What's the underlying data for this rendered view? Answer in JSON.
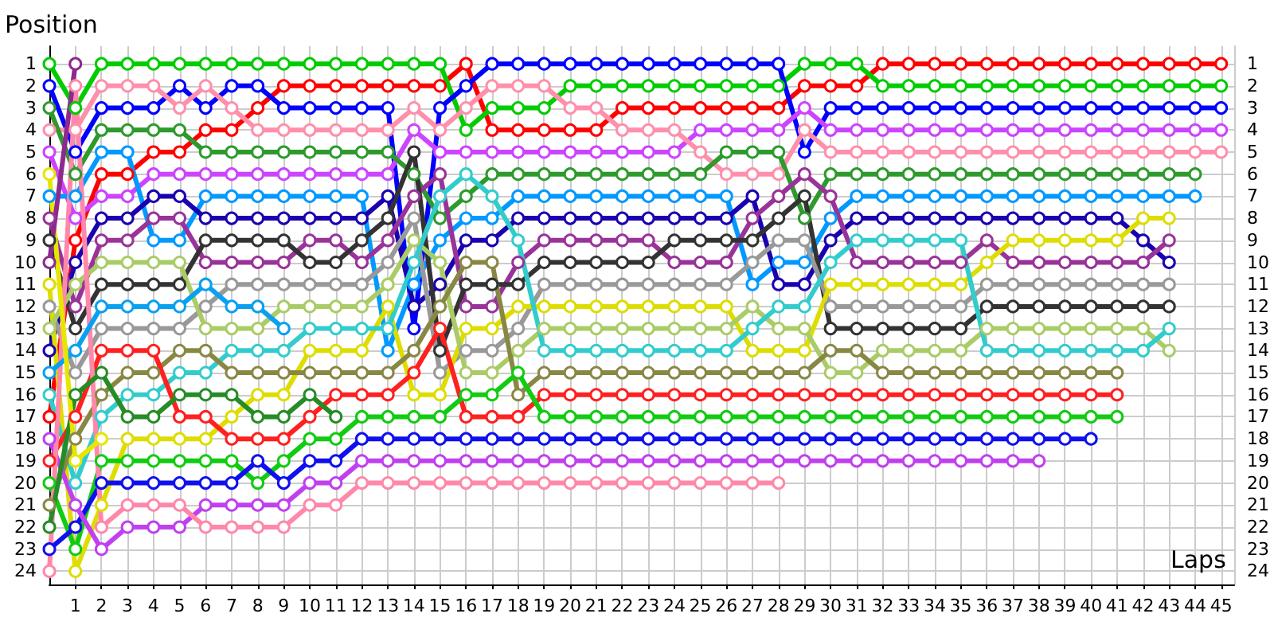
{
  "chart_data": {
    "type": "line",
    "xlabel": "Laps",
    "ylabel": "Position",
    "grid": true,
    "marker": "circle",
    "line_style": "solid",
    "x": [
      0,
      1,
      2,
      3,
      4,
      5,
      6,
      7,
      8,
      9,
      10,
      11,
      12,
      13,
      14,
      15,
      16,
      17,
      18,
      19,
      20,
      21,
      22,
      23,
      24,
      25,
      26,
      27,
      28,
      29,
      30,
      31,
      32,
      33,
      34,
      35,
      36,
      37,
      38,
      39,
      40,
      41,
      42,
      43,
      44,
      45
    ],
    "xlim": [
      0,
      45.5
    ],
    "xticks": [
      1,
      2,
      3,
      4,
      5,
      6,
      7,
      8,
      9,
      10,
      11,
      12,
      13,
      14,
      15,
      16,
      17,
      18,
      19,
      20,
      21,
      22,
      23,
      24,
      25,
      26,
      27,
      28,
      29,
      30,
      31,
      32,
      33,
      34,
      35,
      36,
      37,
      38,
      39,
      40,
      41,
      42,
      43,
      44,
      45
    ],
    "ylim": [
      24.6,
      0.2
    ],
    "yticks": [
      1,
      2,
      3,
      4,
      5,
      6,
      7,
      8,
      9,
      10,
      11,
      12,
      13,
      14,
      15,
      16,
      17,
      18,
      19,
      20,
      21,
      22,
      23,
      24
    ],
    "y2lim": [
      24.6,
      0.2
    ],
    "y2ticks": [
      1,
      2,
      3,
      4,
      5,
      6,
      7,
      8,
      9,
      10,
      11,
      12,
      13,
      14,
      15,
      16,
      17,
      18,
      19,
      20,
      21,
      22,
      23,
      24
    ],
    "series": [
      {
        "color": "#ff0000",
        "values": [
          17,
          9,
          6,
          6,
          5,
          5,
          4,
          4,
          3,
          2,
          2,
          2,
          2,
          2,
          2,
          2,
          1,
          4,
          4,
          4,
          4,
          4,
          3,
          3,
          3,
          3,
          3,
          3,
          3,
          2,
          2,
          2,
          1,
          1,
          1,
          1,
          1,
          1,
          1,
          1,
          1,
          1,
          1,
          1,
          1,
          1
        ]
      },
      {
        "color": "#00cc00",
        "values": [
          1,
          3,
          1,
          1,
          1,
          1,
          1,
          1,
          1,
          1,
          1,
          1,
          1,
          1,
          1,
          1,
          4,
          3,
          3,
          3,
          2,
          2,
          2,
          2,
          2,
          2,
          2,
          2,
          2,
          1,
          1,
          1,
          2,
          2,
          2,
          2,
          2,
          2,
          2,
          2,
          2,
          2,
          2,
          2,
          2,
          2
        ]
      },
      {
        "color": "#0000ff",
        "values": [
          2,
          5,
          3,
          3,
          3,
          2,
          3,
          2,
          2,
          3,
          3,
          3,
          3,
          3,
          13,
          3,
          2,
          1,
          1,
          1,
          1,
          1,
          1,
          1,
          1,
          1,
          1,
          1,
          1,
          5,
          3,
          3,
          3,
          3,
          3,
          3,
          3,
          3,
          3,
          3,
          3,
          3,
          3,
          3,
          3,
          3
        ]
      },
      {
        "color": "#cc44ff",
        "values": [
          5,
          8,
          7,
          7,
          6,
          6,
          6,
          6,
          6,
          6,
          6,
          6,
          6,
          6,
          4,
          5,
          5,
          5,
          5,
          5,
          5,
          5,
          5,
          5,
          5,
          4,
          4,
          4,
          4,
          3,
          4,
          4,
          4,
          4,
          4,
          4,
          4,
          4,
          4,
          4,
          4,
          4,
          4,
          4,
          4,
          4
        ]
      },
      {
        "color": "#ff8fab",
        "values": [
          4,
          4,
          2,
          2,
          2,
          3,
          2,
          3,
          4,
          4,
          4,
          4,
          4,
          4,
          3,
          4,
          3,
          2,
          2,
          2,
          3,
          3,
          4,
          4,
          4,
          5,
          6,
          6,
          6,
          4,
          5,
          5,
          5,
          5,
          5,
          5,
          5,
          5,
          5,
          5,
          5,
          5,
          5,
          5,
          5,
          5
        ]
      },
      {
        "color": "#2e9a2e",
        "values": [
          3,
          6,
          4,
          4,
          4,
          4,
          5,
          5,
          5,
          5,
          5,
          5,
          5,
          5,
          6,
          8,
          7,
          6,
          6,
          6,
          6,
          6,
          6,
          6,
          6,
          6,
          5,
          5,
          5,
          8,
          6,
          6,
          6,
          6,
          6,
          6,
          6,
          6,
          6,
          6,
          6,
          6,
          6,
          6,
          6,
          null
        ]
      },
      {
        "color": "#0099ff",
        "values": [
          7,
          7,
          5,
          5,
          9,
          9,
          7,
          7,
          7,
          7,
          7,
          7,
          7,
          14,
          11,
          9,
          8,
          8,
          7,
          7,
          7,
          7,
          7,
          7,
          7,
          7,
          7,
          11,
          10,
          10,
          8,
          7,
          7,
          7,
          7,
          7,
          7,
          7,
          7,
          7,
          7,
          7,
          7,
          7,
          7,
          null
        ]
      },
      {
        "color": "#1a00b0",
        "values": [
          14,
          10,
          8,
          8,
          7,
          7,
          8,
          8,
          8,
          8,
          8,
          8,
          8,
          7,
          12,
          11,
          9,
          9,
          8,
          8,
          8,
          8,
          8,
          8,
          8,
          8,
          8,
          7,
          11,
          11,
          9,
          8,
          8,
          8,
          8,
          8,
          8,
          8,
          8,
          8,
          8,
          8,
          9,
          10,
          null,
          null
        ]
      },
      {
        "color": "#993399",
        "values": [
          8,
          12,
          9,
          9,
          8,
          8,
          10,
          10,
          10,
          10,
          9,
          9,
          10,
          9,
          7,
          6,
          12,
          12,
          10,
          9,
          9,
          9,
          9,
          9,
          10,
          10,
          10,
          8,
          7,
          6,
          7,
          10,
          10,
          10,
          10,
          10,
          9,
          10,
          10,
          10,
          10,
          10,
          10,
          9,
          null,
          null
        ]
      },
      {
        "color": "#333333",
        "values": [
          9,
          13,
          11,
          11,
          11,
          11,
          9,
          9,
          9,
          9,
          10,
          10,
          9,
          8,
          5,
          14,
          11,
          11,
          11,
          10,
          10,
          10,
          10,
          10,
          9,
          9,
          9,
          9,
          8,
          7,
          13,
          13,
          13,
          13,
          13,
          13,
          12,
          12,
          12,
          12,
          12,
          12,
          12,
          12,
          null,
          null
        ]
      },
      {
        "color": "#999999",
        "values": [
          12,
          15,
          13,
          13,
          13,
          13,
          12,
          11,
          11,
          11,
          11,
          11,
          11,
          10,
          8,
          15,
          14,
          14,
          13,
          11,
          11,
          11,
          11,
          11,
          11,
          11,
          11,
          10,
          9,
          9,
          12,
          12,
          12,
          12,
          12,
          12,
          11,
          11,
          11,
          11,
          11,
          11,
          11,
          11,
          null,
          null
        ]
      },
      {
        "color": "#dddd00",
        "values": [
          11,
          24,
          21,
          18,
          18,
          18,
          18,
          17,
          16,
          16,
          14,
          14,
          14,
          12,
          16,
          16,
          13,
          13,
          12,
          12,
          12,
          12,
          12,
          12,
          12,
          12,
          12,
          14,
          14,
          14,
          11,
          11,
          11,
          11,
          11,
          11,
          10,
          9,
          9,
          9,
          9,
          9,
          8,
          8,
          null,
          null
        ]
      },
      {
        "color": "#aacc66",
        "values": [
          13,
          11,
          10,
          10,
          10,
          10,
          13,
          13,
          13,
          12,
          12,
          12,
          12,
          11,
          9,
          10,
          15,
          15,
          14,
          13,
          13,
          13,
          13,
          13,
          13,
          13,
          13,
          12,
          13,
          13,
          15,
          15,
          14,
          14,
          14,
          14,
          13,
          13,
          13,
          13,
          13,
          13,
          13,
          14,
          null,
          null
        ]
      },
      {
        "color": "#33cccc",
        "values": [
          16,
          20,
          17,
          16,
          16,
          15,
          15,
          14,
          14,
          14,
          13,
          13,
          13,
          13,
          10,
          7,
          6,
          7,
          9,
          14,
          14,
          14,
          14,
          14,
          14,
          14,
          14,
          13,
          12,
          12,
          10,
          9,
          9,
          9,
          9,
          9,
          14,
          14,
          14,
          14,
          14,
          14,
          14,
          13,
          null,
          null
        ]
      },
      {
        "color": "#888844",
        "values": [
          21,
          18,
          16,
          15,
          15,
          14,
          14,
          15,
          15,
          15,
          15,
          15,
          15,
          15,
          14,
          12,
          10,
          10,
          16,
          15,
          15,
          15,
          15,
          15,
          15,
          15,
          15,
          15,
          15,
          15,
          14,
          14,
          15,
          15,
          15,
          15,
          15,
          15,
          15,
          15,
          15,
          15,
          null,
          null,
          null,
          null
        ]
      },
      {
        "color": "#ff2020",
        "values": [
          19,
          17,
          14,
          14,
          14,
          17,
          17,
          18,
          18,
          18,
          17,
          16,
          16,
          16,
          15,
          13,
          17,
          17,
          17,
          16,
          16,
          16,
          16,
          16,
          16,
          16,
          16,
          16,
          16,
          16,
          16,
          16,
          16,
          16,
          16,
          16,
          16,
          16,
          16,
          16,
          16,
          16,
          null,
          null,
          null,
          null
        ]
      },
      {
        "color": "#11cc11",
        "values": [
          20,
          23,
          19,
          19,
          19,
          19,
          19,
          19,
          20,
          19,
          18,
          18,
          17,
          17,
          17,
          17,
          16,
          16,
          15,
          17,
          17,
          17,
          17,
          17,
          17,
          17,
          17,
          17,
          17,
          17,
          17,
          17,
          17,
          17,
          17,
          17,
          17,
          17,
          17,
          17,
          17,
          17,
          null,
          null,
          null,
          null
        ]
      },
      {
        "color": "#1010ee",
        "values": [
          23,
          22,
          20,
          20,
          20,
          20,
          20,
          20,
          19,
          20,
          19,
          19,
          18,
          18,
          18,
          18,
          18,
          18,
          18,
          18,
          18,
          18,
          18,
          18,
          18,
          18,
          18,
          18,
          18,
          18,
          18,
          18,
          18,
          18,
          18,
          18,
          18,
          18,
          18,
          18,
          18,
          null,
          null,
          null,
          null,
          null
        ]
      },
      {
        "color": "#c040f0",
        "values": [
          18,
          21,
          23,
          22,
          22,
          22,
          21,
          21,
          21,
          21,
          20,
          20,
          19,
          19,
          19,
          19,
          19,
          19,
          19,
          19,
          19,
          19,
          19,
          19,
          19,
          19,
          19,
          19,
          19,
          19,
          19,
          19,
          19,
          19,
          19,
          19,
          19,
          19,
          19,
          null,
          null,
          null,
          null,
          null,
          null,
          null
        ]
      },
      {
        "color": "#ff88aa",
        "values": [
          24,
          2,
          22,
          21,
          21,
          21,
          22,
          22,
          22,
          22,
          21,
          21,
          20,
          20,
          20,
          20,
          20,
          20,
          20,
          20,
          20,
          20,
          20,
          20,
          20,
          20,
          20,
          20,
          20,
          null,
          null,
          null,
          null,
          null,
          null,
          null,
          null,
          null,
          null,
          null,
          null,
          null,
          null,
          null,
          null,
          null
        ]
      },
      {
        "color": "#0aa0f0",
        "values": [
          15,
          14,
          12,
          12,
          12,
          12,
          11,
          12,
          12,
          13,
          null,
          null,
          null,
          null,
          null,
          null,
          null,
          null,
          null,
          null,
          null,
          null,
          null,
          null,
          null,
          null,
          null,
          null,
          null,
          null,
          null,
          null,
          null,
          null,
          null,
          null,
          null,
          null,
          null,
          null,
          null,
          null,
          null,
          null,
          null,
          null
        ]
      },
      {
        "color": "#268c26",
        "values": [
          22,
          16,
          15,
          17,
          17,
          16,
          16,
          16,
          17,
          17,
          16,
          17,
          null,
          null,
          null,
          null,
          null,
          null,
          null,
          null,
          null,
          null,
          null,
          null,
          null,
          null,
          null,
          null,
          null,
          null,
          null,
          null,
          null,
          null,
          null,
          null,
          null,
          null,
          null,
          null,
          null,
          null,
          null,
          null,
          null,
          null
        ]
      },
      {
        "color": "#e6e600",
        "values": [
          6,
          19,
          18,
          null,
          null,
          null,
          null,
          null,
          null,
          null,
          null,
          null,
          null,
          null,
          null,
          null,
          null,
          null,
          null,
          null,
          null,
          null,
          null,
          null,
          null,
          null,
          null,
          null,
          null,
          null,
          null,
          null,
          null,
          null,
          null,
          null,
          null,
          null,
          null,
          null,
          null,
          null,
          null,
          null,
          null,
          null
        ]
      },
      {
        "color": "#8e2a8e",
        "values": [
          10,
          1,
          null,
          null,
          null,
          null,
          null,
          null,
          null,
          null,
          null,
          null,
          null,
          null,
          null,
          null,
          null,
          null,
          null,
          null,
          null,
          null,
          null,
          null,
          null,
          null,
          null,
          null,
          null,
          null,
          null,
          null,
          null,
          null,
          null,
          null,
          null,
          null,
          null,
          null,
          null,
          null,
          null,
          null,
          null,
          null
        ]
      }
    ]
  }
}
